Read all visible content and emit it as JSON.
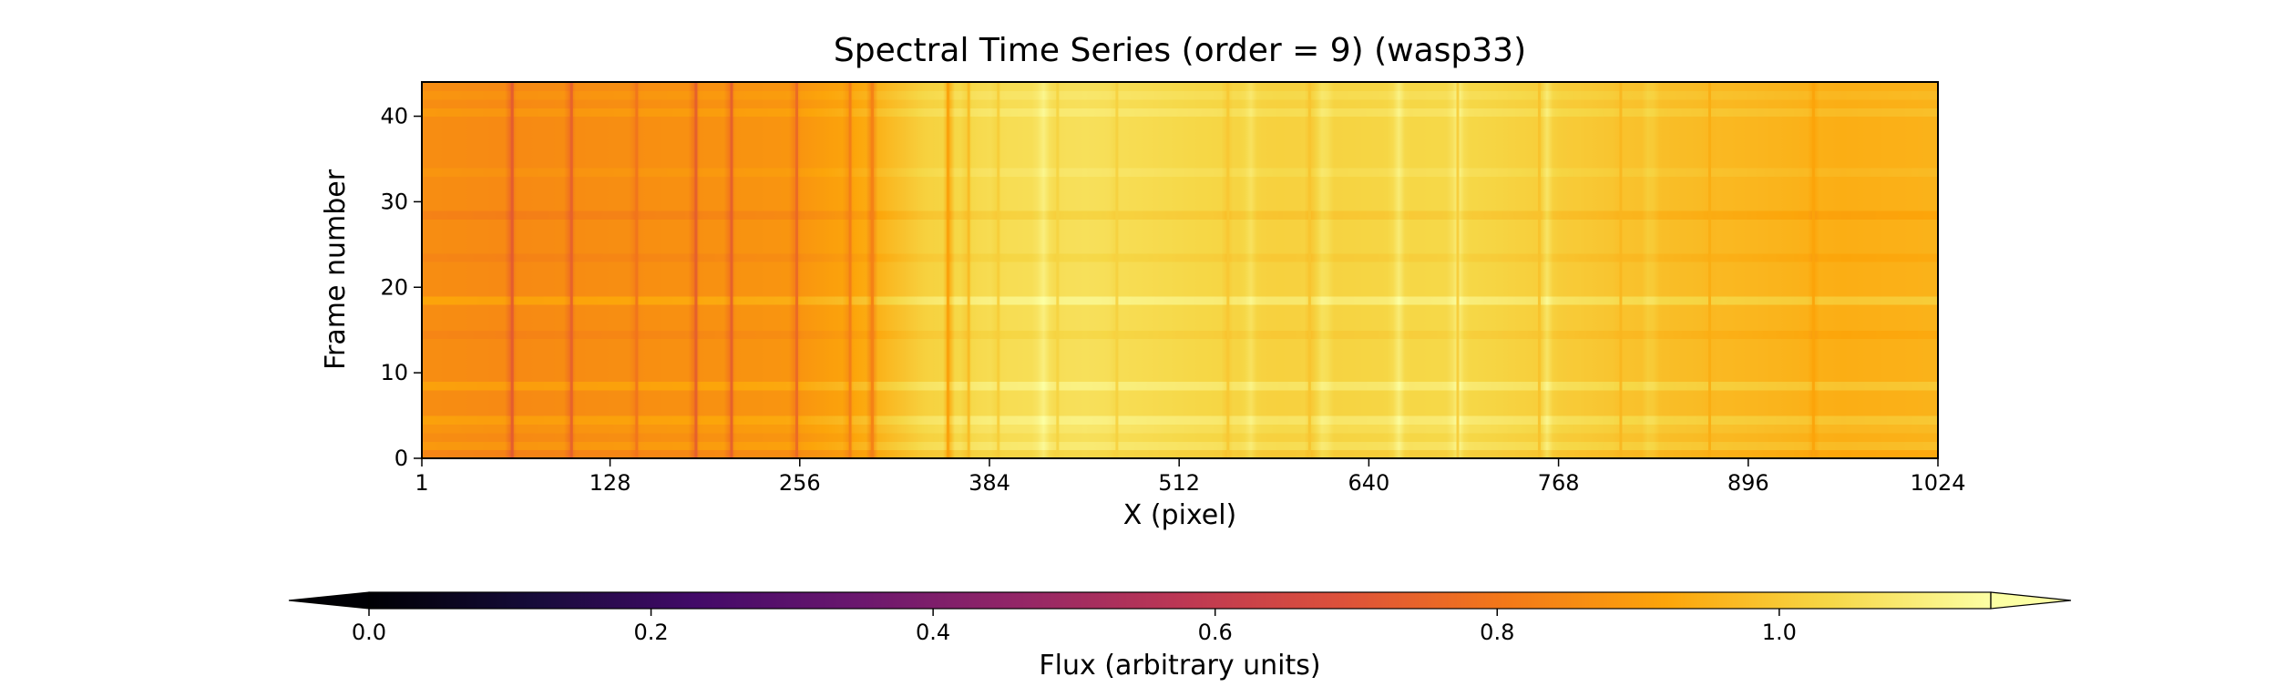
{
  "chart_data": {
    "type": "heatmap",
    "title": "Spectral Time Series (order = 9) (wasp33)",
    "xlabel": "X (pixel)",
    "ylabel": "Frame number",
    "xlim": [
      1,
      1024
    ],
    "ylim": [
      0,
      44
    ],
    "x_ticks": [
      "1",
      "128",
      "256",
      "384",
      "512",
      "640",
      "768",
      "896",
      "1024"
    ],
    "x_tick_values": [
      1,
      128,
      256,
      384,
      512,
      640,
      768,
      896,
      1024
    ],
    "y_ticks": [
      "0",
      "10",
      "20",
      "30",
      "40"
    ],
    "y_tick_values": [
      0,
      10,
      20,
      30,
      40
    ],
    "colormap": "inferno",
    "colorbar": {
      "label": "Flux (arbitrary units)",
      "min": 0.0,
      "max": 1.15,
      "ticks": [
        "0.0",
        "0.2",
        "0.4",
        "0.6",
        "0.8",
        "1.0"
      ],
      "tick_values": [
        0.0,
        0.2,
        0.4,
        0.6,
        0.8,
        1.0
      ],
      "extend": "both"
    },
    "frames": 44,
    "continuum": [
      {
        "x": 1,
        "flux": 0.86
      },
      {
        "x": 60,
        "flux": 0.85
      },
      {
        "x": 128,
        "flux": 0.86
      },
      {
        "x": 200,
        "flux": 0.87
      },
      {
        "x": 256,
        "flux": 0.88
      },
      {
        "x": 300,
        "flux": 0.93
      },
      {
        "x": 340,
        "flux": 1.02
      },
      {
        "x": 384,
        "flux": 1.05
      },
      {
        "x": 450,
        "flux": 1.06
      },
      {
        "x": 512,
        "flux": 1.04
      },
      {
        "x": 580,
        "flux": 1.02
      },
      {
        "x": 640,
        "flux": 1.03
      },
      {
        "x": 700,
        "flux": 1.04
      },
      {
        "x": 768,
        "flux": 1.01
      },
      {
        "x": 830,
        "flux": 0.98
      },
      {
        "x": 896,
        "flux": 0.96
      },
      {
        "x": 960,
        "flux": 0.94
      },
      {
        "x": 1024,
        "flux": 0.95
      }
    ],
    "absorption_lines": [
      {
        "x": 62,
        "depth": 0.13
      },
      {
        "x": 102,
        "depth": 0.12
      },
      {
        "x": 146,
        "depth": 0.07
      },
      {
        "x": 186,
        "depth": 0.14
      },
      {
        "x": 210,
        "depth": 0.14
      },
      {
        "x": 254,
        "depth": 0.12
      },
      {
        "x": 290,
        "depth": 0.1
      },
      {
        "x": 305,
        "depth": 0.11
      },
      {
        "x": 356,
        "depth": 0.12
      },
      {
        "x": 370,
        "depth": 0.07
      },
      {
        "x": 390,
        "depth": 0.04
      },
      {
        "x": 430,
        "depth": 0.03
      },
      {
        "x": 470,
        "depth": 0.03
      },
      {
        "x": 545,
        "depth": 0.03
      },
      {
        "x": 600,
        "depth": 0.03
      },
      {
        "x": 700,
        "depth": 0.03
      },
      {
        "x": 755,
        "depth": 0.03
      },
      {
        "x": 810,
        "depth": 0.03
      },
      {
        "x": 870,
        "depth": 0.03
      },
      {
        "x": 940,
        "depth": 0.03
      }
    ],
    "emission_bands": [
      {
        "x": 420,
        "height": 0.05
      },
      {
        "x": 560,
        "height": 0.04
      },
      {
        "x": 610,
        "height": 0.05
      },
      {
        "x": 660,
        "height": 0.06
      },
      {
        "x": 700,
        "height": 0.09
      },
      {
        "x": 760,
        "height": 0.06
      },
      {
        "x": 830,
        "height": 0.04
      }
    ],
    "frame_offsets": [
      {
        "frame": 0,
        "offset": -0.02
      },
      {
        "frame": 1,
        "offset": 0.03
      },
      {
        "frame": 3,
        "offset": 0.02
      },
      {
        "frame": 4,
        "offset": 0.05
      },
      {
        "frame": 8,
        "offset": 0.05
      },
      {
        "frame": 14,
        "offset": -0.02
      },
      {
        "frame": 18,
        "offset": 0.06
      },
      {
        "frame": 23,
        "offset": -0.02
      },
      {
        "frame": 28,
        "offset": -0.03
      },
      {
        "frame": 33,
        "offset": 0.02
      },
      {
        "frame": 40,
        "offset": 0.03
      },
      {
        "frame": 42,
        "offset": 0.02
      }
    ]
  }
}
